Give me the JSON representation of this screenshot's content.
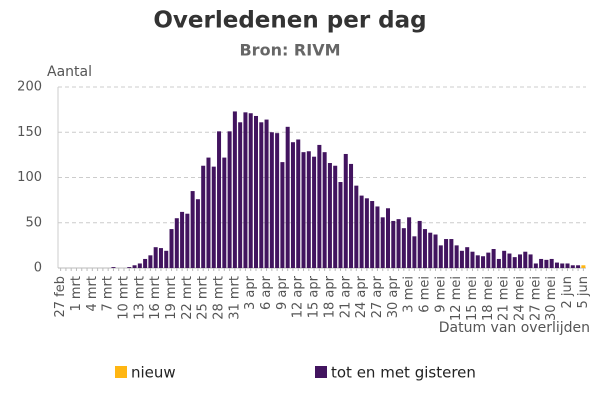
{
  "chart_data": {
    "type": "bar",
    "stacked": true,
    "title": "Overledenen per dag",
    "subtitle": "Bron: RIVM",
    "y_label": "Aantal",
    "x_label": "Datum van overlijden",
    "categories": [
      "27 feb",
      null,
      null,
      "1 mrt",
      null,
      null,
      "4 mrt",
      null,
      null,
      "7 mrt",
      null,
      null,
      "10 mrt",
      null,
      null,
      "13 mrt",
      null,
      null,
      "16 mrt",
      null,
      null,
      "19 mrt",
      null,
      null,
      "22 mrt",
      null,
      null,
      "25 mrt",
      null,
      null,
      "28 mrt",
      null,
      null,
      "31 mrt",
      null,
      null,
      "3 apr",
      null,
      null,
      "6 apr",
      null,
      null,
      "9 apr",
      null,
      null,
      "12 apr",
      null,
      null,
      "15 apr",
      null,
      null,
      "18 apr",
      null,
      null,
      "21 apr",
      null,
      null,
      "24 apr",
      null,
      null,
      "27 apr",
      null,
      null,
      "30 apr",
      null,
      null,
      "3 mei",
      null,
      null,
      "6 mei",
      null,
      null,
      "9 mei",
      null,
      null,
      "12 mei",
      null,
      null,
      "15 mei",
      null,
      null,
      "18 mei",
      null,
      null,
      "21 mei",
      null,
      null,
      "24 mei",
      null,
      null,
      "27 mei",
      null,
      null,
      "30 mei",
      null,
      null,
      "2 jun",
      null,
      null,
      "5 jun"
    ],
    "series": [
      {
        "name": "tot en met gisteren",
        "color": "#42145f",
        "values": [
          0,
          0,
          0,
          0,
          0,
          0,
          0,
          0,
          0,
          0,
          1,
          0,
          0,
          1,
          3,
          5,
          10,
          14,
          23,
          22,
          19,
          43,
          55,
          62,
          60,
          85,
          76,
          113,
          122,
          112,
          151,
          122,
          151,
          173,
          161,
          172,
          171,
          168,
          161,
          164,
          150,
          149,
          117,
          156,
          139,
          142,
          128,
          129,
          123,
          136,
          128,
          116,
          113,
          95,
          126,
          115,
          91,
          80,
          77,
          74,
          68,
          56,
          66,
          52,
          54,
          44,
          56,
          35,
          52,
          43,
          39,
          37,
          25,
          32,
          32,
          25,
          19,
          23,
          18,
          14,
          13,
          17,
          21,
          10,
          19,
          16,
          12,
          15,
          18,
          15,
          5,
          10,
          9,
          10,
          6,
          5,
          5,
          3,
          3,
          0
        ]
      },
      {
        "name": "nieuw",
        "color": "#ffb612",
        "values": [
          0,
          0,
          0,
          0,
          0,
          0,
          0,
          0,
          0,
          0,
          0,
          0,
          0,
          0,
          0,
          0,
          0,
          0,
          0,
          0,
          0,
          0,
          0,
          0,
          0,
          0,
          0,
          0,
          0,
          0,
          0,
          0,
          0,
          0,
          0,
          0,
          0,
          0,
          0,
          0,
          0,
          0,
          0,
          0,
          0,
          0,
          0,
          0,
          0,
          0,
          0,
          0,
          0,
          0,
          0,
          0,
          0,
          0,
          0,
          0,
          0,
          0,
          0,
          0,
          0,
          0,
          0,
          0,
          0,
          0,
          0,
          0,
          0,
          0,
          0,
          0,
          0,
          0,
          0,
          0,
          0,
          0,
          0,
          0,
          0,
          0,
          0,
          0,
          0,
          0,
          0,
          0,
          0,
          0,
          0,
          0,
          0,
          0,
          0,
          3
        ]
      }
    ],
    "legend_order": [
      1,
      0
    ],
    "ylim": [
      0,
      200
    ],
    "yticks": [
      0,
      50,
      100,
      150,
      200
    ],
    "grid": true
  }
}
